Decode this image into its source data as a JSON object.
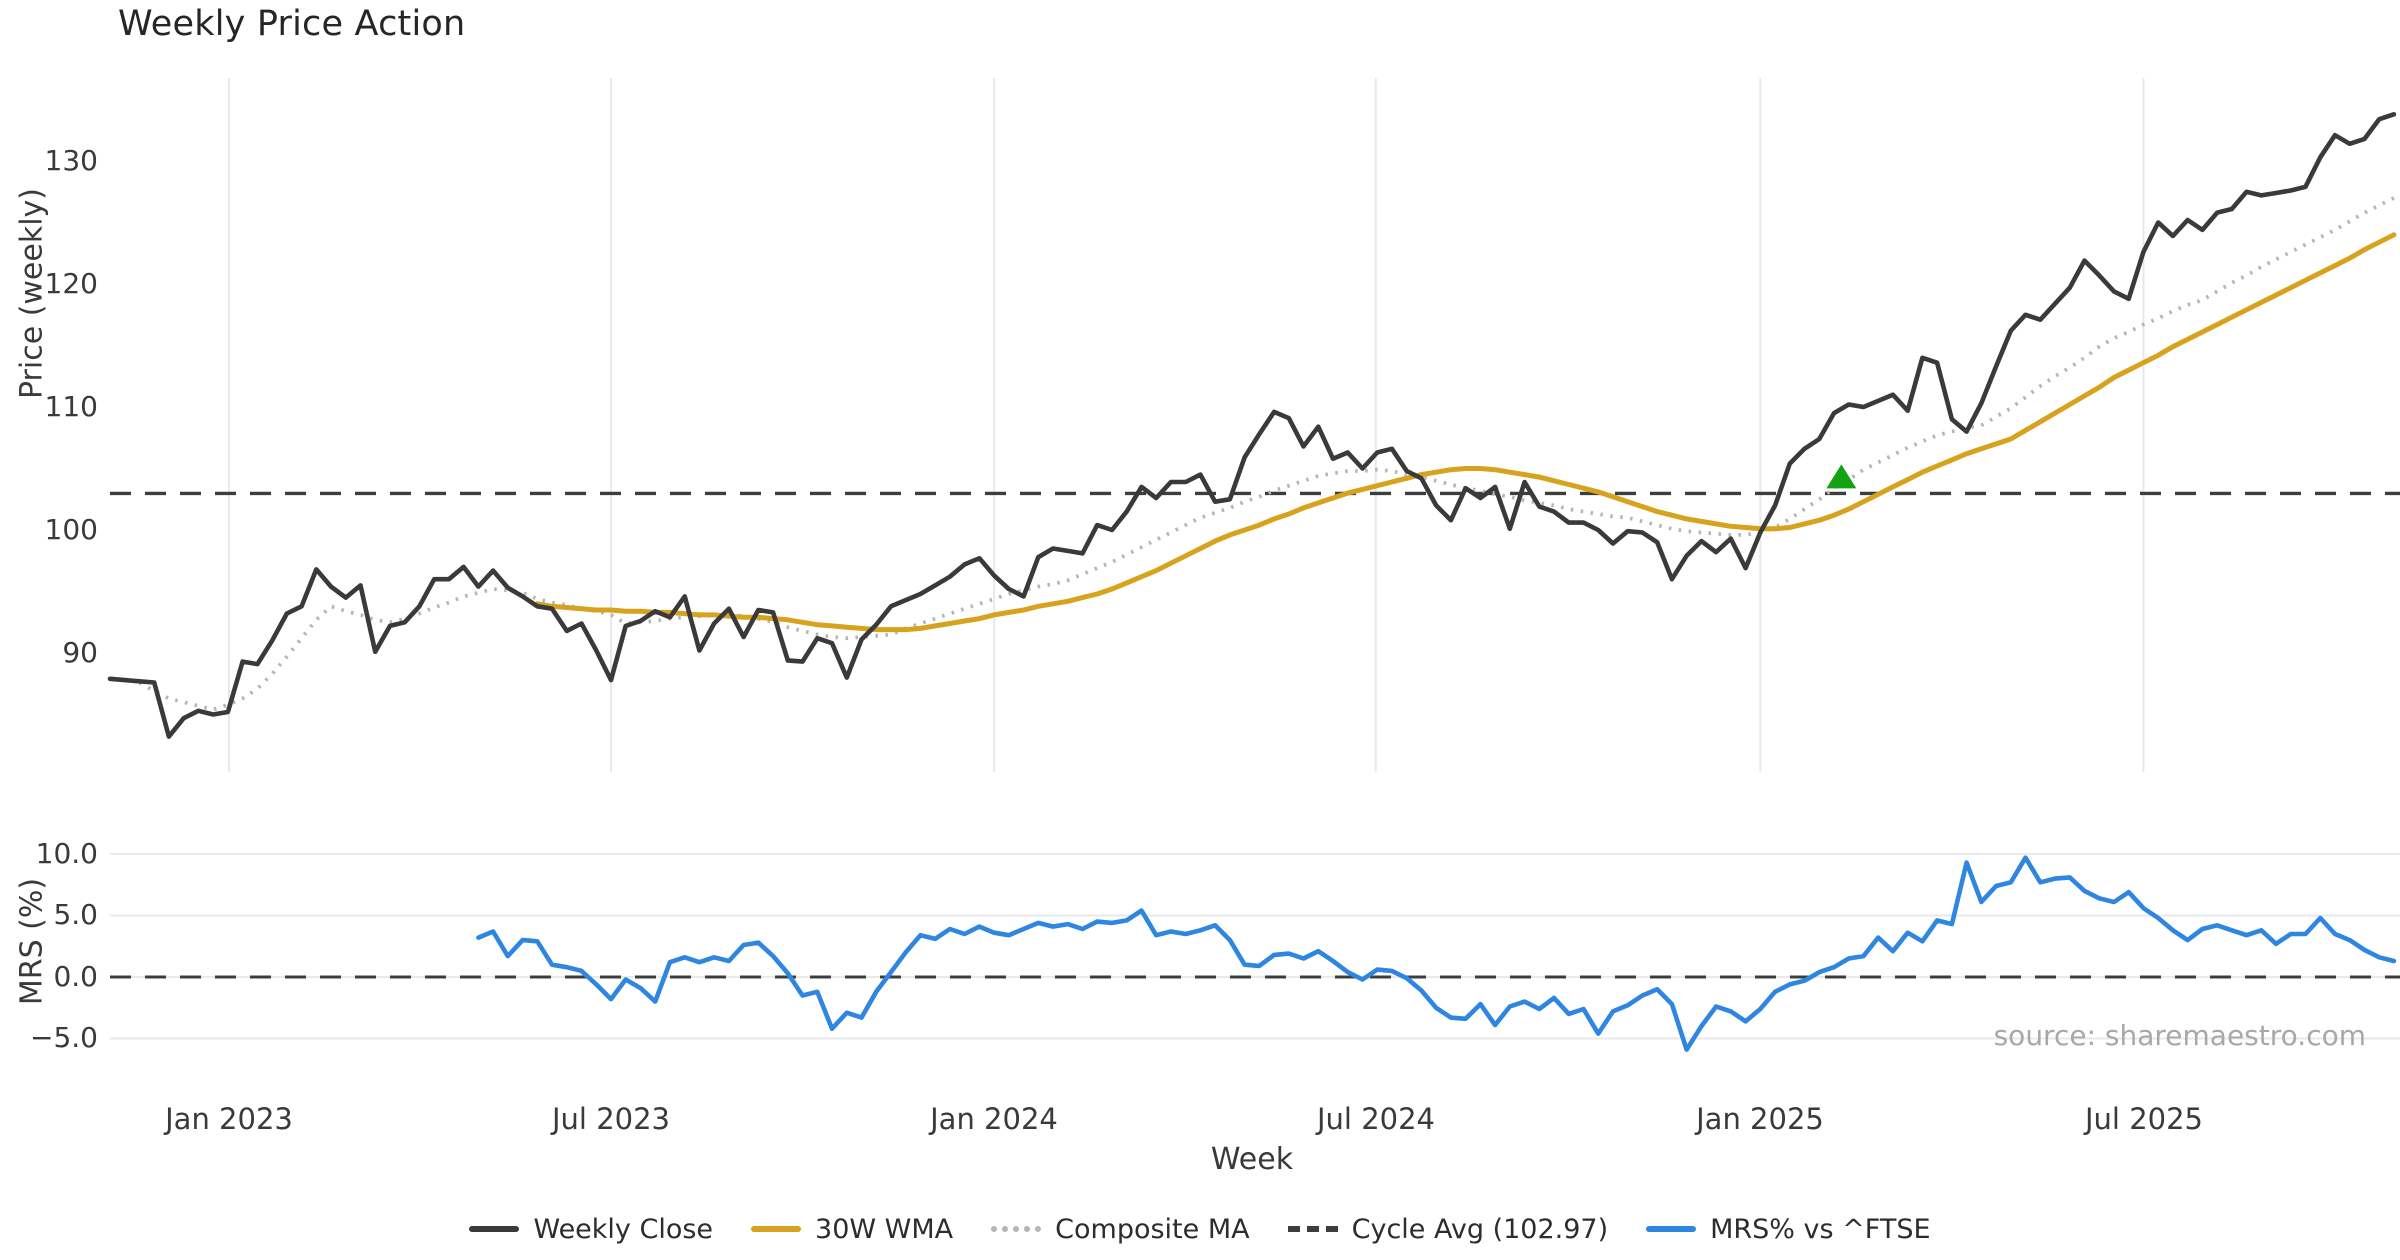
{
  "title": "Weekly Price Action",
  "source_note": "source: sharemaestro.com",
  "colors": {
    "close": "#3a3a3a",
    "wma": "#d7a21d",
    "composite": "#b5b5b5",
    "cycle_dash": "#3d3d3d",
    "mrs": "#2f86e0",
    "signal_green": "#12a212",
    "grid": "#e9e9eb",
    "tick_text": "#3a3a3a"
  },
  "axes": {
    "price": {
      "label": "Price (weekly)",
      "ticks": [
        {
          "value": 90,
          "label": "90"
        },
        {
          "value": 100,
          "label": "100"
        },
        {
          "value": 110,
          "label": "110"
        },
        {
          "value": 120,
          "label": "120"
        },
        {
          "value": 130,
          "label": "130"
        }
      ]
    },
    "mrs": {
      "label": "MRS (%)",
      "ticks": [
        {
          "value": -5,
          "label": "−5.0"
        },
        {
          "value": 0,
          "label": "0.0"
        },
        {
          "value": 5,
          "label": "5.0"
        },
        {
          "value": 10,
          "label": "10.0"
        }
      ]
    },
    "x": {
      "label": "Week",
      "ticks": [
        {
          "week": 8.08,
          "label": "Jan 2023"
        },
        {
          "week": 34.0,
          "label": "Jul 2023"
        },
        {
          "week": 60.0,
          "label": "Jan 2024"
        },
        {
          "week": 85.9,
          "label": "Jul 2024"
        },
        {
          "week": 112.0,
          "label": "Jan 2025"
        },
        {
          "week": 138.0,
          "label": "Jul 2025"
        }
      ]
    }
  },
  "legend": {
    "items": [
      {
        "label": "Weekly Close",
        "style": "solid",
        "color": "#3a3a3a"
      },
      {
        "label": "30W WMA",
        "style": "solid",
        "color": "#d7a21d"
      },
      {
        "label": "Composite MA",
        "style": "dotted",
        "color": "#b5b5b5"
      },
      {
        "label": "Cycle Avg (102.97)",
        "style": "dashed",
        "color": "#3d3d3d"
      },
      {
        "label": "MRS% vs ^FTSE",
        "style": "solid",
        "color": "#2f86e0"
      }
    ]
  },
  "chart_data": [
    {
      "type": "line",
      "panel": "price",
      "title": "Weekly Price Action",
      "xlabel": "Week",
      "ylabel": "Price (weekly)",
      "ylim": [
        80,
        137
      ],
      "yticks": [
        90,
        100,
        110,
        120,
        130
      ],
      "grid": "vertical-only",
      "cycle_avg": 102.97,
      "series": [
        {
          "name": "Weekly Close",
          "start_week": 0,
          "values": [
            87.9,
            87.8,
            87.7,
            87.6,
            83.2,
            84.7,
            85.3,
            85.0,
            85.2,
            89.3,
            89.1,
            91.0,
            93.2,
            93.8,
            96.8,
            95.4,
            94.5,
            95.5,
            90.1,
            92.2,
            92.5,
            93.8,
            96.0,
            96.0,
            97.0,
            95.4,
            96.7,
            95.3,
            94.6,
            93.8,
            93.6,
            91.8,
            92.4,
            90.2,
            87.8,
            92.2,
            92.6,
            93.4,
            92.9,
            94.6,
            90.2,
            92.4,
            93.6,
            91.3,
            93.5,
            93.3,
            89.4,
            89.3,
            91.2,
            90.8,
            88.0,
            91.1,
            92.3,
            93.8,
            94.3,
            94.8,
            95.5,
            96.2,
            97.2,
            97.7,
            96.3,
            95.2,
            94.6,
            97.8,
            98.5,
            98.3,
            98.1,
            100.4,
            100.0,
            101.5,
            103.5,
            102.6,
            103.9,
            103.9,
            104.5,
            102.3,
            102.5,
            105.9,
            107.8,
            109.6,
            109.1,
            106.8,
            108.4,
            105.8,
            106.3,
            105.0,
            106.3,
            106.6,
            104.8,
            104.2,
            102.0,
            100.8,
            103.4,
            102.6,
            103.5,
            100.1,
            103.9,
            101.9,
            101.5,
            100.6,
            100.6,
            100.0,
            98.9,
            99.9,
            99.8,
            99.0,
            96.0,
            97.9,
            99.1,
            98.2,
            99.3,
            96.9,
            99.8,
            102.0,
            105.4,
            106.6,
            107.4,
            109.5,
            110.2,
            110.0,
            110.5,
            111.0,
            109.7,
            114.0,
            113.6,
            109.0,
            108.0,
            110.3,
            113.3,
            116.2,
            117.5,
            117.1,
            118.4,
            119.7,
            121.9,
            120.7,
            119.4,
            118.8,
            122.6,
            125.0,
            123.9,
            125.2,
            124.4,
            125.8,
            126.1,
            127.5,
            127.2,
            127.4,
            127.6,
            127.9,
            130.3,
            132.1,
            131.4,
            131.8,
            133.4,
            133.8
          ]
        },
        {
          "name": "30W WMA",
          "start_week": 29,
          "values": [
            94.0,
            93.8,
            93.7,
            93.6,
            93.5,
            93.5,
            93.4,
            93.4,
            93.3,
            93.3,
            93.2,
            93.1,
            93.1,
            93.0,
            92.9,
            92.9,
            92.8,
            92.7,
            92.5,
            92.3,
            92.2,
            92.1,
            92.0,
            91.9,
            91.9,
            91.9,
            92.0,
            92.2,
            92.4,
            92.6,
            92.8,
            93.1,
            93.3,
            93.5,
            93.8,
            94.0,
            94.2,
            94.5,
            94.8,
            95.2,
            95.7,
            96.2,
            96.7,
            97.3,
            97.9,
            98.5,
            99.1,
            99.6,
            100.0,
            100.4,
            100.9,
            101.3,
            101.8,
            102.2,
            102.6,
            103.0,
            103.3,
            103.6,
            103.9,
            104.2,
            104.5,
            104.7,
            104.9,
            105.0,
            105.0,
            104.9,
            104.7,
            104.5,
            104.3,
            104.0,
            103.7,
            103.4,
            103.1,
            102.7,
            102.3,
            101.9,
            101.5,
            101.2,
            100.9,
            100.7,
            100.5,
            100.3,
            100.2,
            100.1,
            100.1,
            100.2,
            100.5,
            100.8,
            101.2,
            101.7,
            102.3,
            102.9,
            103.5,
            104.1,
            104.7,
            105.2,
            105.7,
            106.2,
            106.6,
            107.0,
            107.4,
            108.1,
            108.8,
            109.5,
            110.2,
            110.9,
            111.6,
            112.4,
            113.0,
            113.6,
            114.2,
            114.9,
            115.5,
            116.1,
            116.7,
            117.3,
            117.9,
            118.5,
            119.1,
            119.7,
            120.3,
            120.9,
            121.5,
            122.1,
            122.8,
            123.4,
            124.0
          ]
        },
        {
          "name": "Composite MA",
          "start_week": 2,
          "values": [
            87.6,
            86.9,
            86.3,
            86.0,
            85.7,
            85.4,
            85.8,
            86.3,
            87.1,
            88.3,
            89.7,
            91.2,
            92.7,
            93.8,
            93.4,
            93.1,
            92.7,
            92.5,
            92.8,
            93.2,
            93.7,
            94.1,
            94.6,
            94.9,
            95.2,
            95.1,
            94.9,
            94.4,
            94.1,
            93.9,
            93.6,
            93.4,
            93.1,
            92.4,
            92.5,
            92.6,
            92.8,
            92.9,
            93.0,
            93.1,
            93.1,
            93.0,
            92.8,
            92.5,
            92.1,
            91.8,
            91.5,
            91.3,
            91.2,
            91.3,
            91.4,
            91.5,
            92.0,
            92.4,
            92.8,
            93.2,
            93.6,
            94.0,
            94.4,
            94.8,
            95.1,
            95.4,
            95.6,
            95.9,
            96.4,
            96.9,
            97.4,
            98.0,
            98.6,
            99.2,
            99.8,
            100.4,
            101.0,
            101.4,
            101.8,
            102.3,
            102.7,
            103.2,
            103.6,
            104.0,
            104.4,
            104.6,
            104.8,
            104.8,
            104.9,
            104.8,
            104.5,
            104.3,
            104.0,
            103.7,
            103.4,
            103.2,
            102.9,
            102.7,
            102.4,
            102.2,
            102.0,
            101.7,
            101.5,
            101.3,
            101.1,
            101.0,
            100.7,
            100.4,
            100.1,
            99.9,
            99.8,
            99.7,
            99.6,
            99.6,
            99.8,
            100.2,
            100.9,
            101.7,
            102.5,
            103.4,
            104.1,
            104.9,
            105.5,
            106.1,
            106.7,
            107.2,
            107.7,
            108.0,
            108.3,
            108.5,
            109.2,
            109.9,
            110.8,
            111.7,
            112.5,
            113.2,
            114.0,
            114.9,
            115.6,
            116.1,
            116.7,
            117.2,
            117.8,
            118.3,
            118.7,
            119.4,
            120.1,
            120.7,
            121.4,
            122.0,
            122.6,
            123.2,
            123.8,
            124.4,
            125.1,
            125.8,
            126.4,
            127.0
          ]
        },
        {
          "name": "Cycle Avg",
          "constant": 102.97
        }
      ],
      "markers": [
        {
          "name": "buy-signal",
          "shape": "triangle-up",
          "week": 117.5,
          "value": 104.2,
          "color": "#12a212"
        }
      ]
    },
    {
      "type": "line",
      "panel": "mrs",
      "ylabel": "MRS (%)",
      "ylim": [
        -7.6,
        11.2
      ],
      "yticks": [
        -5,
        0,
        5,
        10
      ],
      "grid": "horizontal-only",
      "zero_line": 0,
      "series": [
        {
          "name": "MRS% vs ^FTSE",
          "start_week": 25,
          "values": [
            3.2,
            3.7,
            1.7,
            3.0,
            2.9,
            1.0,
            0.8,
            0.5,
            -0.6,
            -1.8,
            -0.2,
            -0.9,
            -2.0,
            1.2,
            1.6,
            1.2,
            1.6,
            1.3,
            2.6,
            2.8,
            1.7,
            0.3,
            -1.5,
            -1.2,
            -4.2,
            -2.9,
            -3.3,
            -1.2,
            0.4,
            2.0,
            3.4,
            3.1,
            3.9,
            3.5,
            4.1,
            3.6,
            3.4,
            3.9,
            4.4,
            4.1,
            4.3,
            3.9,
            4.5,
            4.4,
            4.6,
            5.4,
            3.4,
            3.7,
            3.5,
            3.8,
            4.2,
            3.0,
            1.0,
            0.9,
            1.8,
            1.9,
            1.5,
            2.1,
            1.3,
            0.4,
            -0.2,
            0.6,
            0.5,
            -0.1,
            -1.1,
            -2.5,
            -3.3,
            -3.4,
            -2.2,
            -3.9,
            -2.4,
            -2.0,
            -2.6,
            -1.7,
            -3.0,
            -2.6,
            -4.6,
            -2.8,
            -2.3,
            -1.5,
            -1.0,
            -2.2,
            -5.9,
            -4.0,
            -2.4,
            -2.8,
            -3.6,
            -2.6,
            -1.2,
            -0.6,
            -0.3,
            0.4,
            0.8,
            1.5,
            1.7,
            3.2,
            2.1,
            3.6,
            2.9,
            4.6,
            4.3,
            9.3,
            6.1,
            7.4,
            7.7,
            9.7,
            7.7,
            8.0,
            8.1,
            7.0,
            6.4,
            6.1,
            6.9,
            5.6,
            4.8,
            3.8,
            3.0,
            3.9,
            4.2,
            3.8,
            3.4,
            3.8,
            2.7,
            3.5,
            3.5,
            4.8,
            3.5,
            3.0,
            2.2,
            1.6,
            1.3
          ]
        }
      ]
    }
  ]
}
